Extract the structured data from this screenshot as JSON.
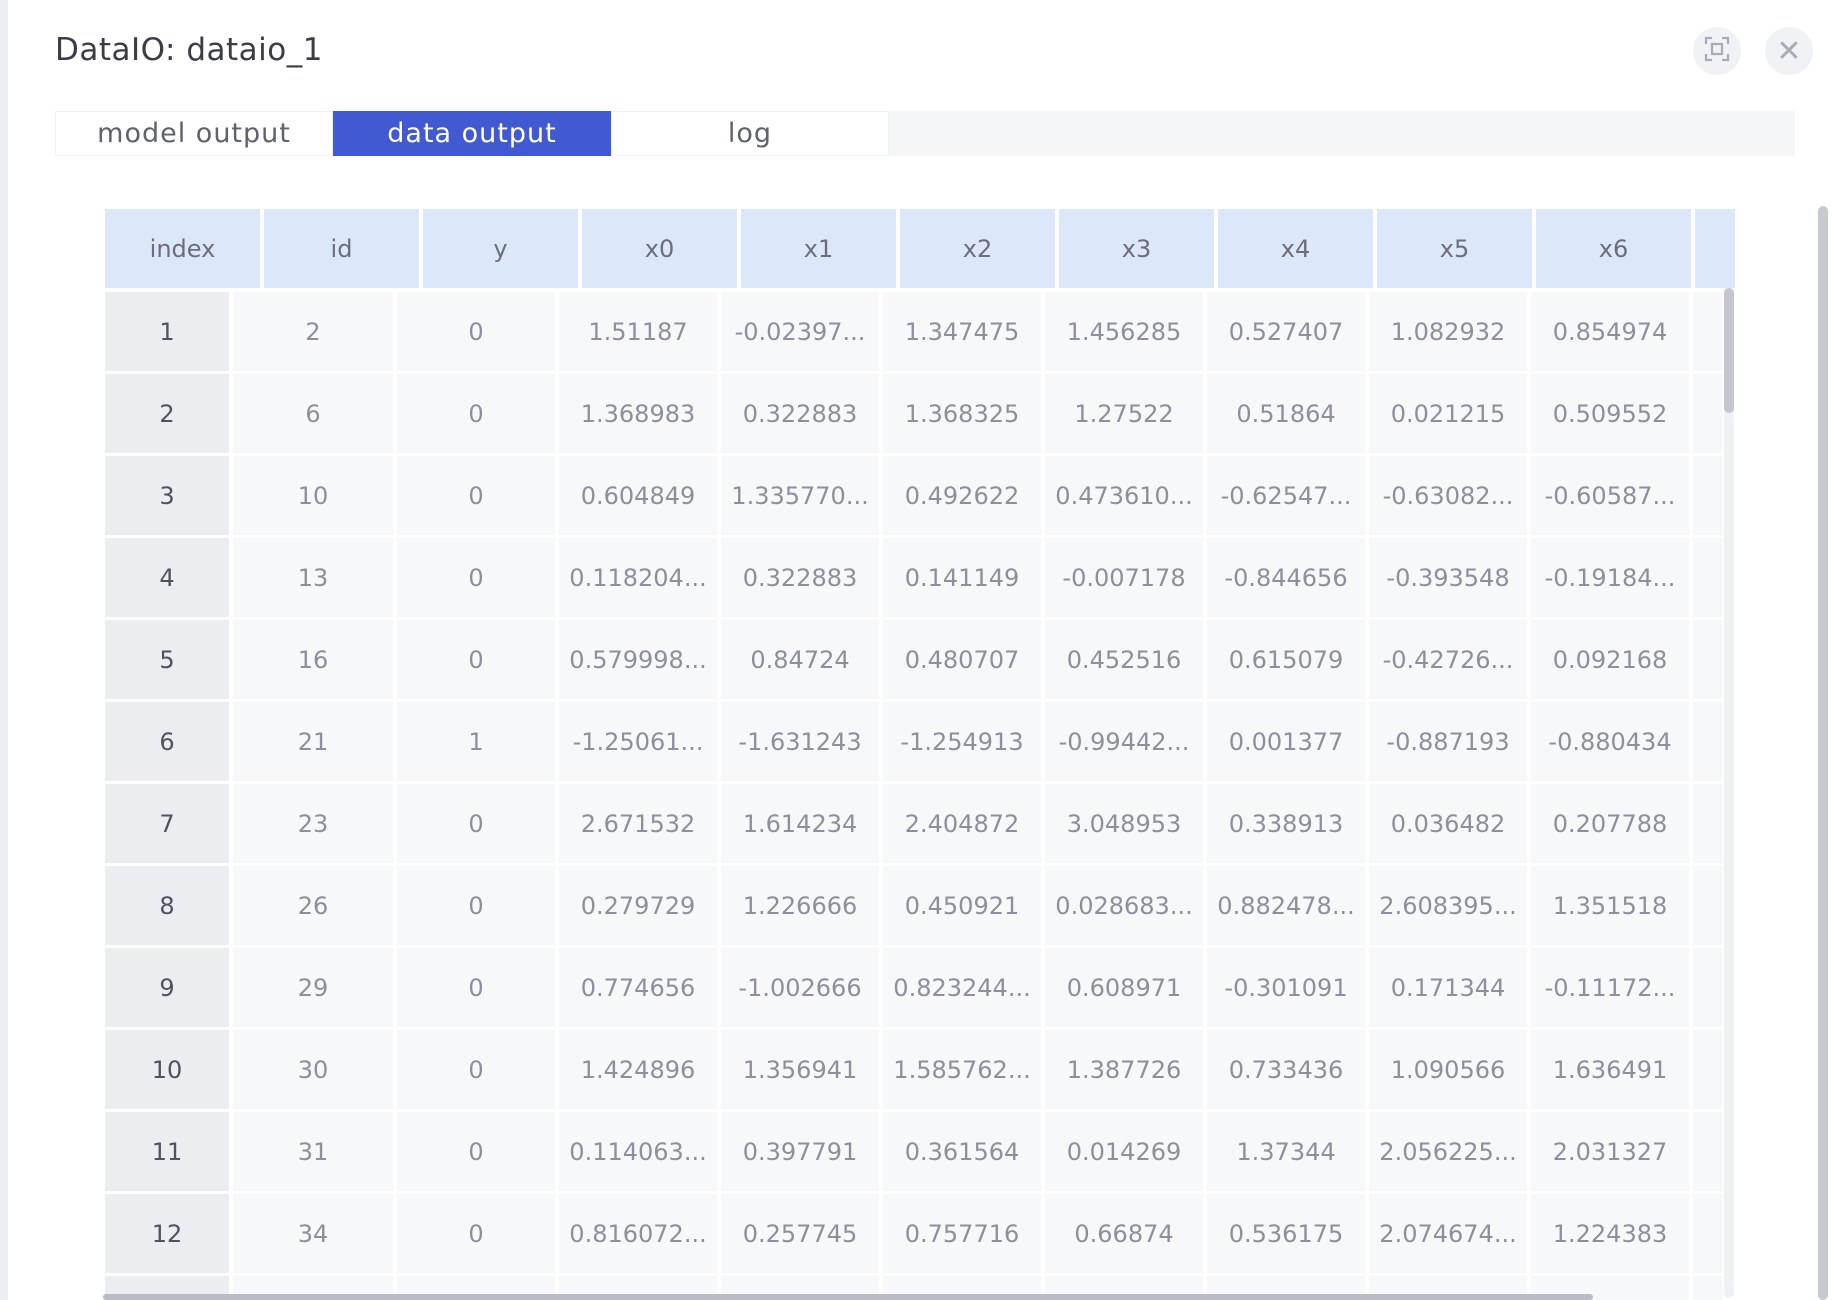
{
  "dialog": {
    "title": "DataIO: dataio_1"
  },
  "tabs": [
    {
      "label": "model output",
      "active": false
    },
    {
      "label": "data output",
      "active": true
    },
    {
      "label": "log",
      "active": false
    }
  ],
  "table": {
    "columns": [
      "index",
      "id",
      "y",
      "x0",
      "x1",
      "x2",
      "x3",
      "x4",
      "x5",
      "x6"
    ],
    "rows": [
      [
        "1",
        "2",
        "0",
        "1.51187",
        "-0.02397...",
        "1.347475",
        "1.456285",
        "0.527407",
        "1.082932",
        "0.854974"
      ],
      [
        "2",
        "6",
        "0",
        "1.368983",
        "0.322883",
        "1.368325",
        "1.27522",
        "0.51864",
        "0.021215",
        "0.509552"
      ],
      [
        "3",
        "10",
        "0",
        "0.604849",
        "1.335770...",
        "0.492622",
        "0.473610...",
        "-0.62547...",
        "-0.63082...",
        "-0.60587..."
      ],
      [
        "4",
        "13",
        "0",
        "0.118204...",
        "0.322883",
        "0.141149",
        "-0.007178",
        "-0.844656",
        "-0.393548",
        "-0.19184..."
      ],
      [
        "5",
        "16",
        "0",
        "0.579998...",
        "0.84724",
        "0.480707",
        "0.452516",
        "0.615079",
        "-0.42726...",
        "0.092168"
      ],
      [
        "6",
        "21",
        "1",
        "-1.25061...",
        "-1.631243",
        "-1.254913",
        "-0.99442...",
        "0.001377",
        "-0.887193",
        "-0.880434"
      ],
      [
        "7",
        "23",
        "0",
        "2.671532",
        "1.614234",
        "2.404872",
        "3.048953",
        "0.338913",
        "0.036482",
        "0.207788"
      ],
      [
        "8",
        "26",
        "0",
        "0.279729",
        "1.226666",
        "0.450921",
        "0.028683...",
        "0.882478...",
        "2.608395...",
        "1.351518"
      ],
      [
        "9",
        "29",
        "0",
        "0.774656",
        "-1.002666",
        "0.823244...",
        "0.608971",
        "-0.301091",
        "0.171344",
        "-0.11172..."
      ],
      [
        "10",
        "30",
        "0",
        "1.424896",
        "1.356941",
        "1.585762...",
        "1.387726",
        "0.733436",
        "1.090566",
        "1.636491"
      ],
      [
        "11",
        "31",
        "0",
        "0.114063...",
        "0.397791",
        "0.361564",
        "0.014269",
        "1.37344",
        "2.056225...",
        "2.031327"
      ],
      [
        "12",
        "34",
        "0",
        "0.816072...",
        "0.257745",
        "0.757716",
        "0.66874",
        "0.536175",
        "2.074674...",
        "1.224383"
      ],
      [
        "",
        "",
        "",
        "",
        "",
        "",
        "",
        "",
        "",
        ""
      ]
    ]
  }
}
